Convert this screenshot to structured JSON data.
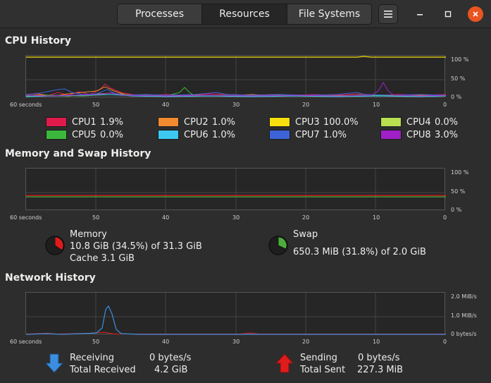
{
  "header": {
    "tabs": [
      {
        "label": "Processes",
        "active": false
      },
      {
        "label": "Resources",
        "active": true
      },
      {
        "label": "File Systems",
        "active": false
      }
    ]
  },
  "cpu": {
    "title": "CPU History",
    "y_ticks": [
      "100 %",
      "50 %",
      "0 %"
    ],
    "x_ticks": [
      "60 seconds",
      "50",
      "40",
      "30",
      "20",
      "10",
      "0"
    ],
    "cores": [
      {
        "label": "CPU1",
        "value": "1.9%",
        "color": "#e01b4c"
      },
      {
        "label": "CPU2",
        "value": "1.0%",
        "color": "#f28a30"
      },
      {
        "label": "CPU3",
        "value": "100.0%",
        "color": "#f8e00f"
      },
      {
        "label": "CPU4",
        "value": "0.0%",
        "color": "#b8e050"
      },
      {
        "label": "CPU5",
        "value": "0.0%",
        "color": "#3cb83c"
      },
      {
        "label": "CPU6",
        "value": "1.0%",
        "color": "#3cc8f0"
      },
      {
        "label": "CPU7",
        "value": "1.0%",
        "color": "#3c64d8"
      },
      {
        "label": "CPU8",
        "value": "3.0%",
        "color": "#a020c8"
      }
    ]
  },
  "memory": {
    "title": "Memory and Swap History",
    "y_ticks": [
      "100 %",
      "50 %",
      "0 %"
    ],
    "x_ticks": [
      "60 seconds",
      "50",
      "40",
      "30",
      "20",
      "10",
      "0"
    ],
    "mem_label": "Memory",
    "mem_usage": "10.8 GiB (34.5%) of 31.3 GiB",
    "mem_cache": "Cache 3.1 GiB",
    "mem_fraction": 0.345,
    "mem_color": "#e01b1b",
    "swap_label": "Swap",
    "swap_usage": "650.3 MiB (31.8%) of 2.0 GiB",
    "swap_fraction": 0.318,
    "swap_color": "#4caf3c"
  },
  "network": {
    "title": "Network History",
    "y_ticks": [
      "2.0 MiB/s",
      "1.0 MiB/s",
      "0 bytes/s"
    ],
    "x_ticks": [
      "60 seconds",
      "50",
      "40",
      "30",
      "20",
      "10",
      "0"
    ],
    "receiving_label": "Receiving",
    "receiving_value": "0 bytes/s",
    "total_received_label": "Total Received",
    "total_received_value": "4.2 GiB",
    "sending_label": "Sending",
    "sending_value": "0 bytes/s",
    "total_sent_label": "Total Sent",
    "total_sent_value": "227.3 MiB"
  }
}
